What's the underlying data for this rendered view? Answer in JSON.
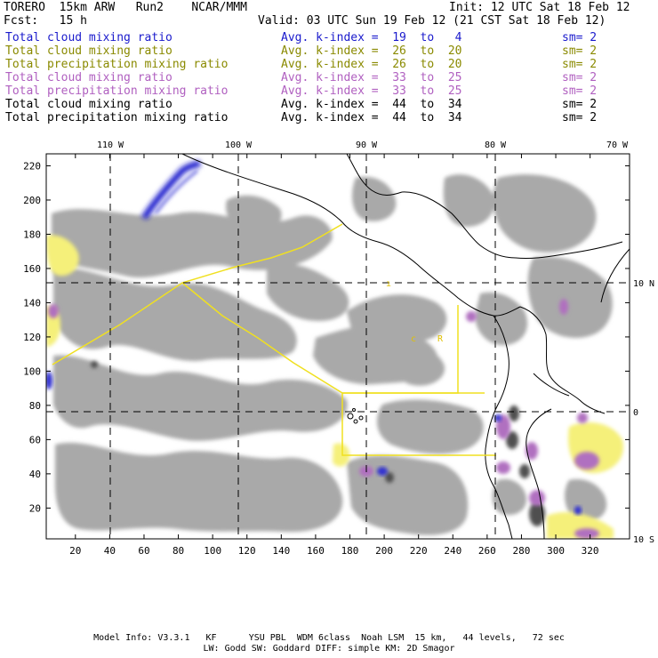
{
  "header": {
    "model": "TORERO  15km ARW   Run2    NCAR/MMM",
    "init": "Init: 12 UTC Sat 18 Feb 12",
    "fcst": "Fcst:   15 h",
    "valid": "Valid: 03 UTC Sun 19 Feb 12 (21 CST Sat 18 Feb 12)"
  },
  "legend": [
    {
      "field": "Total cloud mixing ratio",
      "kindex": "Avg. k-index =  19  to   4",
      "sm": "sm= 2",
      "color": "#1a1acc"
    },
    {
      "field": "Total cloud mixing ratio",
      "kindex": "Avg. k-index =  26  to  20",
      "sm": "sm= 2",
      "color": "#8a8a00"
    },
    {
      "field": "Total precipitation mixing ratio",
      "kindex": "Avg. k-index =  26  to  20",
      "sm": "sm= 2",
      "color": "#8a8a00"
    },
    {
      "field": "Total cloud mixing ratio",
      "kindex": "Avg. k-index =  33  to  25",
      "sm": "sm= 2",
      "color": "#b060c0"
    },
    {
      "field": "Total precipitation mixing ratio",
      "kindex": "Avg. k-index =  33  to  25",
      "sm": "sm= 2",
      "color": "#b060c0"
    },
    {
      "field": "Total cloud mixing ratio",
      "kindex": "Avg. k-index =  44  to  34",
      "sm": "sm= 2",
      "color": "#000000"
    },
    {
      "field": "Total precipitation mixing ratio",
      "kindex": "Avg. k-index =  44  to  34",
      "sm": "sm= 2",
      "color": "#000000"
    }
  ],
  "map": {
    "lon_labels": [
      "110 W",
      "100 W",
      "90 W",
      "80 W",
      "70 W"
    ],
    "lat_labels": [
      "10 N",
      "0",
      "10 S"
    ],
    "x_ticks": [
      "20",
      "40",
      "60",
      "80",
      "100",
      "120",
      "140",
      "160",
      "180",
      "200",
      "220",
      "240",
      "260",
      "280",
      "300",
      "320"
    ],
    "y_ticks": [
      "220",
      "200",
      "180",
      "160",
      "140",
      "120",
      "100",
      "80",
      "60",
      "40",
      "20"
    ],
    "colors": {
      "cloud_gray": "#a9a9a9",
      "dark_gray": "#505050",
      "blue": "#1a1acc",
      "yellow": "#f5f07a",
      "purple": "#b070c0",
      "boundary": "#f0e020"
    }
  },
  "footer": {
    "line1": "Model Info: V3.3.1   KF      YSU PBL  WDM 6class  Noah LSM  15 km,   44 levels,   72 sec",
    "line2": "LW: Godd SW: Goddard DIFF: simple KM: 2D Smagor"
  }
}
